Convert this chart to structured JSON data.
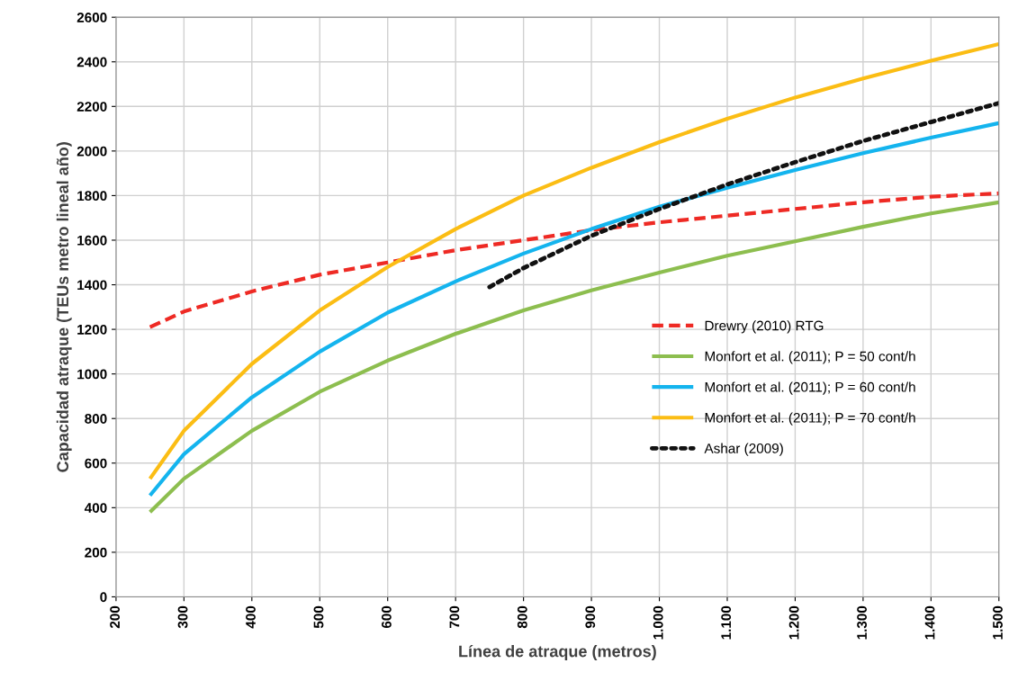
{
  "chart_data": {
    "type": "line",
    "xlabel": "Línea de atraque (metros)",
    "ylabel": "Capacidad atraque (TEUs metro lineal año)",
    "xlim": [
      200,
      1500
    ],
    "xticks": [
      200,
      300,
      400,
      500,
      600,
      700,
      800,
      900,
      {
        "value": 1000,
        "label": "1.000"
      },
      {
        "value": 1100,
        "label": "1.100"
      },
      {
        "value": 1200,
        "label": "1.200"
      },
      {
        "value": 1300,
        "label": "1.300"
      },
      {
        "value": 1400,
        "label": "1.400"
      },
      {
        "value": 1500,
        "label": "1.500"
      }
    ],
    "ylim": [
      0,
      2600
    ],
    "yticks": [
      0,
      200,
      400,
      600,
      800,
      1000,
      1200,
      1400,
      1600,
      1800,
      2000,
      2200,
      2400,
      2600
    ],
    "grid": true,
    "legend": "center right",
    "marker": "none",
    "x": [
      250,
      300,
      400,
      500,
      600,
      700,
      800,
      900,
      1000,
      1100,
      1200,
      1300,
      1400,
      1500
    ],
    "series": [
      {
        "name": "Drewry (2010) RTG",
        "color": "#ee2a24",
        "line_style": "dashed",
        "values": [
          1210,
          1280,
          1370,
          1445,
          1500,
          1555,
          1600,
          1645,
          1680,
          1710,
          1740,
          1770,
          1795,
          1810
        ]
      },
      {
        "name": "Monfort et al. (2011); P = 50 cont/h",
        "color": "#8dbe4f",
        "line_style": "solid",
        "values": [
          380,
          530,
          745,
          920,
          1060,
          1180,
          1285,
          1375,
          1455,
          1530,
          1595,
          1660,
          1720,
          1770
        ]
      },
      {
        "name": "Monfort et al. (2011); P = 60 cont/h",
        "color": "#14b4ee",
        "line_style": "solid",
        "values": [
          455,
          640,
          895,
          1100,
          1275,
          1415,
          1540,
          1650,
          1750,
          1835,
          1915,
          1990,
          2060,
          2125
        ]
      },
      {
        "name": "Monfort et al. (2011); P = 70 cont/h",
        "color": "#fbbd14",
        "line_style": "solid",
        "values": [
          530,
          745,
          1045,
          1285,
          1480,
          1650,
          1800,
          1925,
          2040,
          2145,
          2240,
          2325,
          2405,
          2480
        ]
      },
      {
        "name": "Ashar (2009)",
        "color": "#111111",
        "line_style": "dotted",
        "x": [
          750,
          800,
          900,
          1000,
          1100,
          1200,
          1300,
          1400,
          1500
        ],
        "values": [
          1390,
          1475,
          1620,
          1740,
          1850,
          1950,
          2045,
          2130,
          2215
        ]
      }
    ]
  }
}
